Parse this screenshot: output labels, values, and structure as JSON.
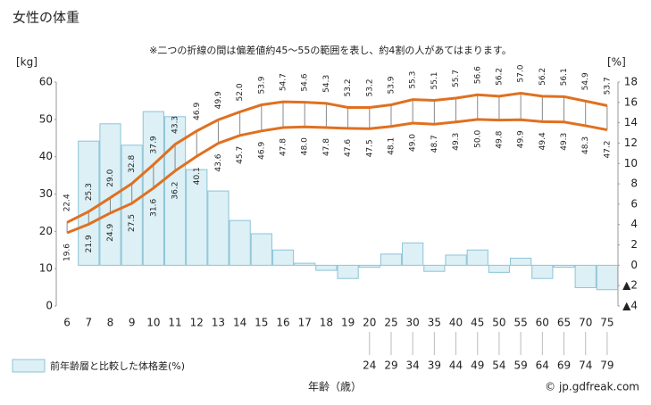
{
  "chart_data": {
    "type": "bar-line",
    "title": "女性の体重",
    "subtitle": "※二つの折線の間は偏差値約45～55の範囲を表し、約4割の人があてはまります。",
    "y_label": "[kg]",
    "y2_label": "[%]",
    "x_label": "年齢（歳）",
    "credit": "© jp.gdfreak.com",
    "categories": [
      "6",
      "7",
      "8",
      "9",
      "10",
      "11",
      "12",
      "13",
      "14",
      "15",
      "16",
      "17",
      "18",
      "19",
      "20",
      "25",
      "30",
      "35",
      "40",
      "45",
      "50",
      "55",
      "60",
      "65",
      "70",
      "75"
    ],
    "category_ends": [
      null,
      null,
      null,
      null,
      null,
      null,
      null,
      null,
      null,
      null,
      null,
      null,
      null,
      null,
      "24",
      "29",
      "34",
      "39",
      "44",
      "49",
      "54",
      "59",
      "64",
      "69",
      "74",
      "79"
    ],
    "series": [
      {
        "name": "前年齢層と比較した体格差(%)",
        "kind": "bar",
        "axis": "y2",
        "color": "#dcf0f6",
        "stroke": "#8cc4d6",
        "values": [
          null,
          12.2,
          13.9,
          11.8,
          15.1,
          14.6,
          9.4,
          7.3,
          4.4,
          3.1,
          1.5,
          0.2,
          -0.5,
          -1.3,
          -0.2,
          1.1,
          2.2,
          -0.6,
          1.0,
          1.5,
          -0.7,
          0.7,
          -1.3,
          -0.2,
          -2.2,
          -2.4
        ]
      },
      {
        "kind": "line",
        "axis": "y",
        "color": "#e07020",
        "label_side": "above",
        "values": [
          22.4,
          25.3,
          29.0,
          32.8,
          37.9,
          43.3,
          46.9,
          49.9,
          52.0,
          53.9,
          54.7,
          54.6,
          54.3,
          53.2,
          53.2,
          53.9,
          55.3,
          55.1,
          55.7,
          56.6,
          56.2,
          57.0,
          56.2,
          56.1,
          54.9,
          53.7
        ],
        "value_labels": [
          "22.4",
          "25.3",
          "29.0",
          "32.8",
          "37.9",
          "43.3",
          "46.9",
          "49.9",
          "52.0",
          "53.9",
          "54.7",
          "54.6",
          "54.3",
          "53.2",
          "53.2",
          "53.9",
          "55.3",
          "55.1",
          "55.7",
          "56.6",
          "56.2",
          "57.0",
          "56.2",
          "56.1",
          "54.9",
          "53.7"
        ]
      },
      {
        "kind": "line",
        "axis": "y",
        "color": "#e07020",
        "label_side": "below",
        "values": [
          19.6,
          21.9,
          24.9,
          27.5,
          31.6,
          36.2,
          40.1,
          43.6,
          45.7,
          46.9,
          47.8,
          48.0,
          47.8,
          47.6,
          47.5,
          48.1,
          49.0,
          48.7,
          49.3,
          50.0,
          49.8,
          49.9,
          49.4,
          49.3,
          48.3,
          47.2
        ],
        "value_labels": [
          "19.6",
          "21.9",
          "24.9",
          "27.5",
          "31.6",
          "36.2",
          "40.1",
          "43.6",
          "45.7",
          "46.9",
          "47.8",
          "48.0",
          "47.8",
          "47.6",
          "47.5",
          "48.1",
          "49.0",
          "48.7",
          "49.3",
          "50.0",
          "49.8",
          "49.9",
          "49.4",
          "49.3",
          "48.3",
          "47.2"
        ]
      }
    ],
    "ylim": [
      0,
      60
    ],
    "yticks": [
      0,
      10,
      20,
      30,
      40,
      50,
      60
    ],
    "y2lim": [
      -4,
      18
    ],
    "y2ticks": [
      {
        "value": -4,
        "label": "▲4"
      },
      {
        "value": -2,
        "label": "▲2"
      },
      0,
      2,
      4,
      6,
      8,
      10,
      12,
      14,
      16,
      18
    ]
  }
}
